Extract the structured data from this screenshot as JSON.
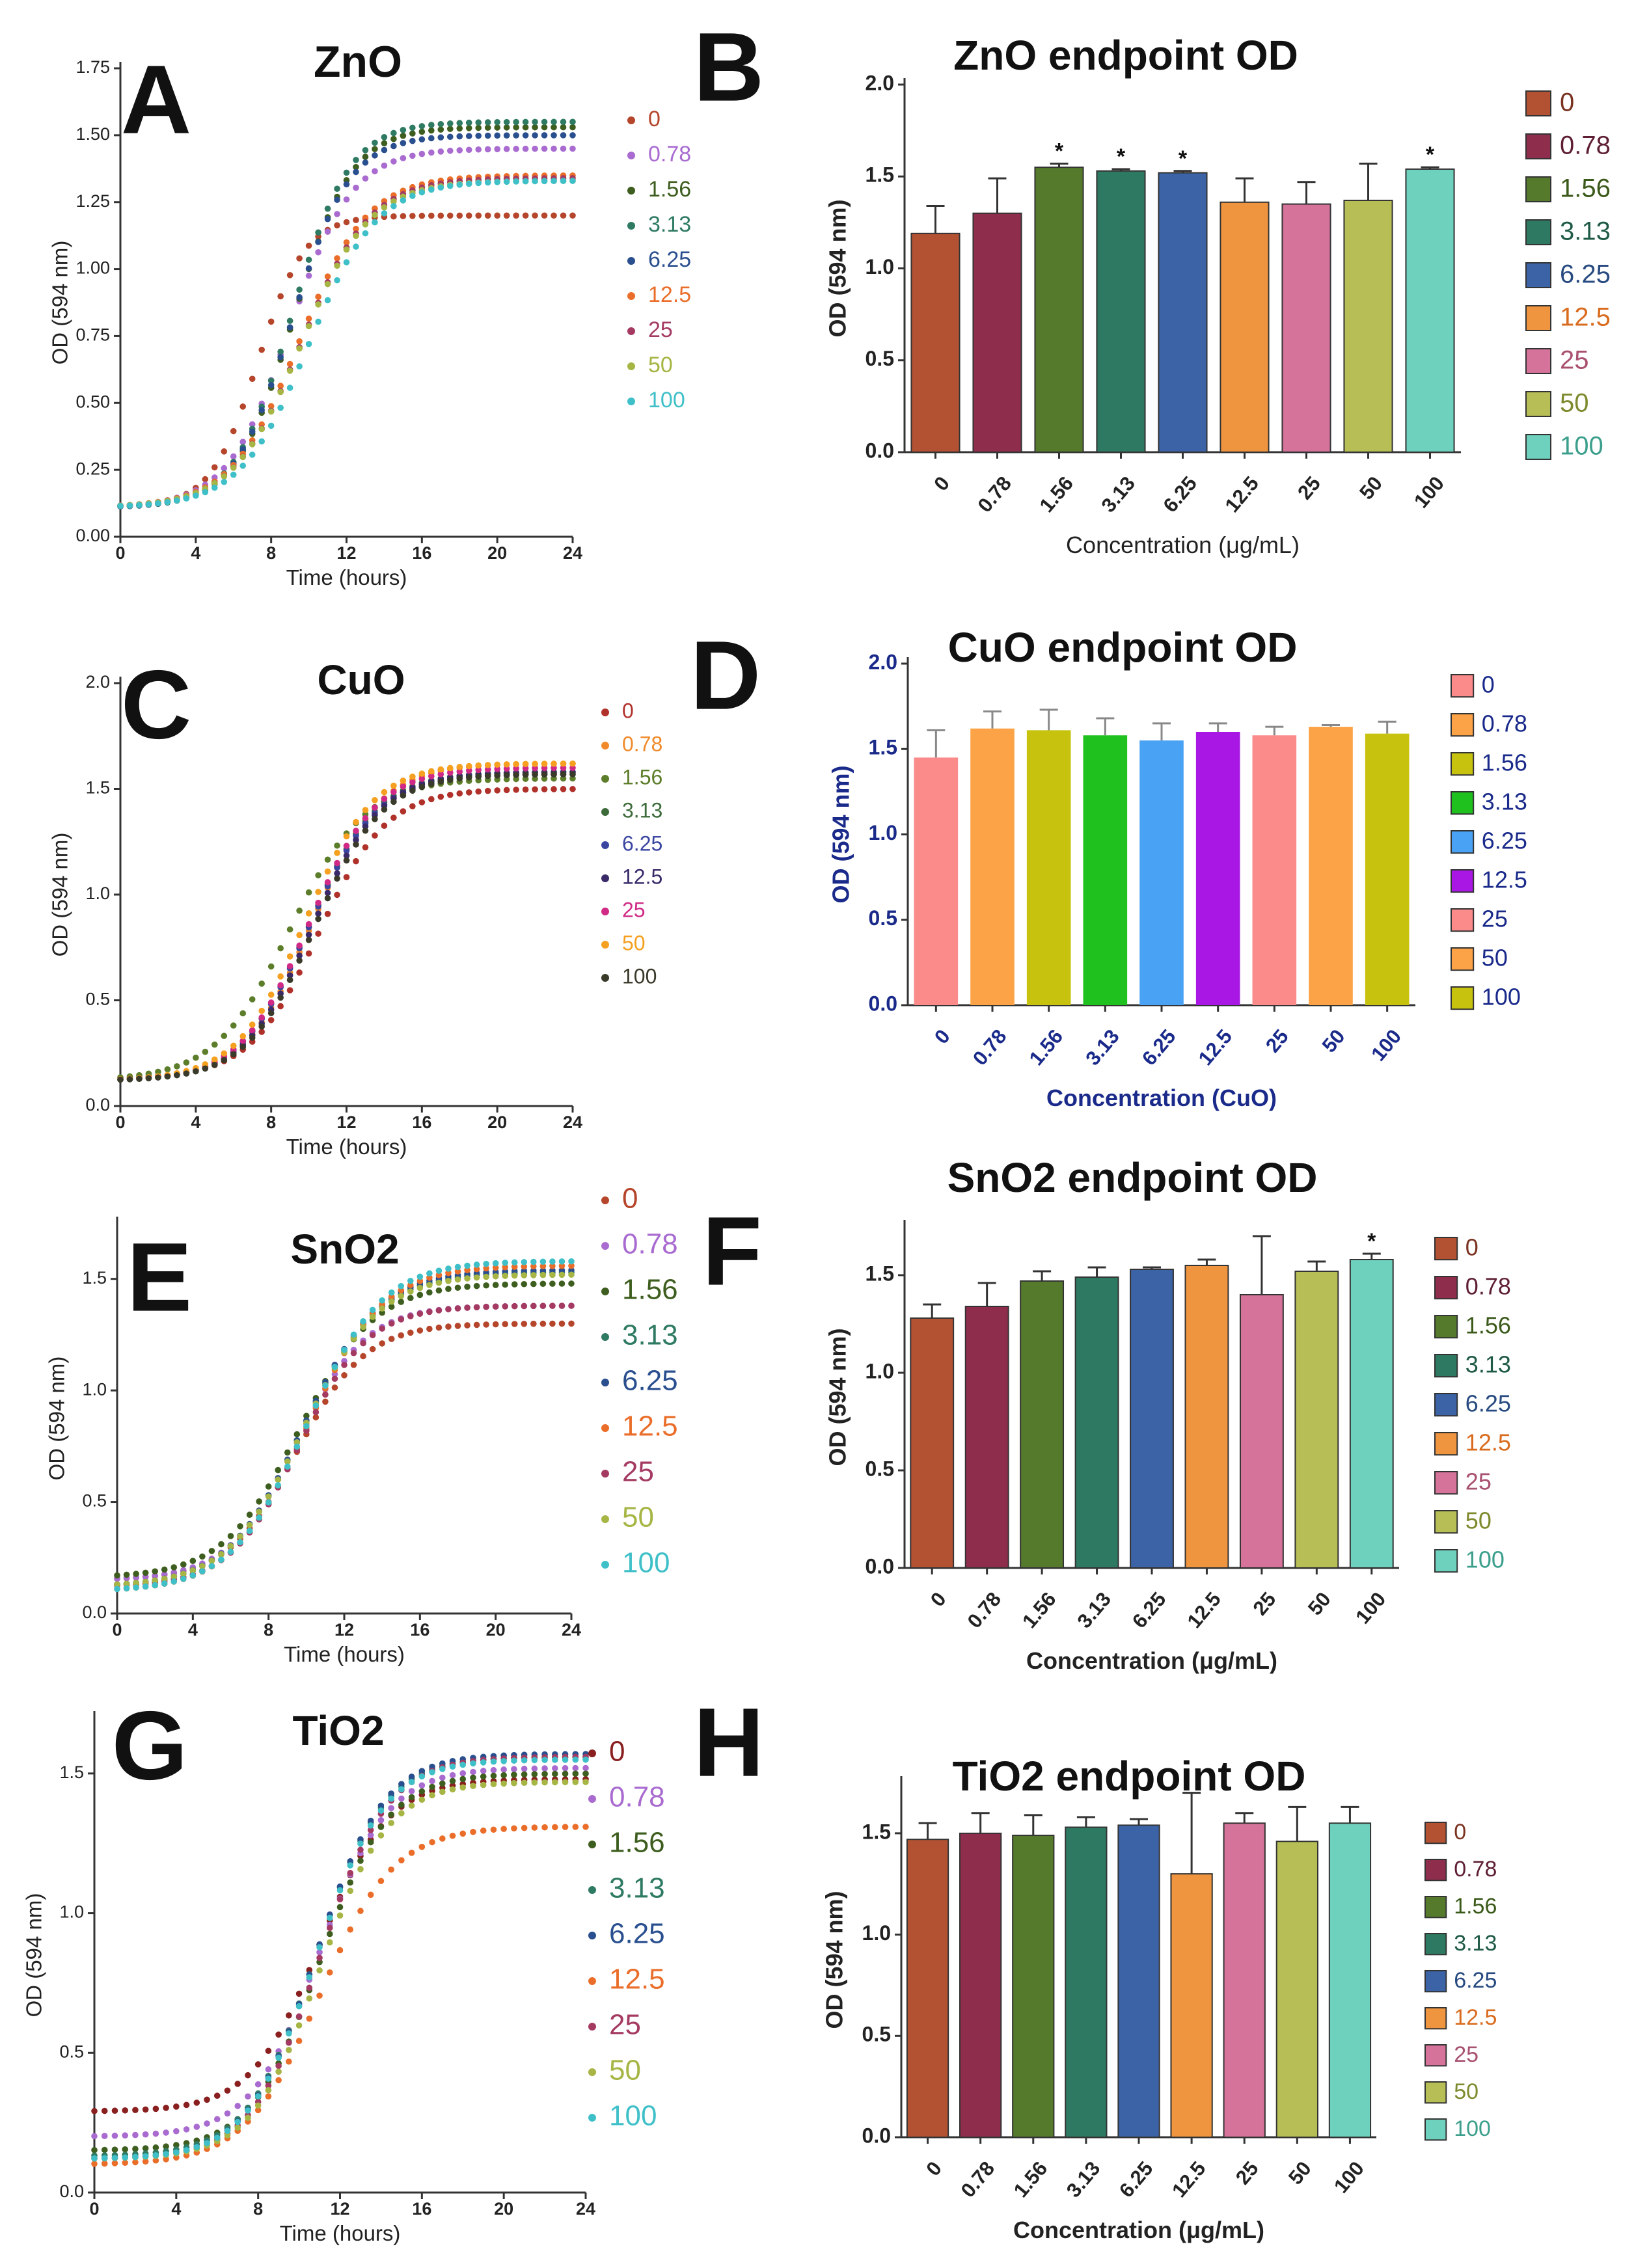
{
  "figure": {
    "concentrations": [
      "0",
      "0.78",
      "1.56",
      "3.13",
      "6.25",
      "12.5",
      "25",
      "50",
      "100"
    ],
    "panels": [
      {
        "letter": "A",
        "title": "ZnO"
      },
      {
        "letter": "B",
        "title": "ZnO endpoint OD"
      },
      {
        "letter": "C",
        "title": "CuO"
      },
      {
        "letter": "D",
        "title": "CuO endpoint OD"
      },
      {
        "letter": "E",
        "title": "SnO2"
      },
      {
        "letter": "F",
        "title": "SnO2 endpoint OD"
      },
      {
        "letter": "G",
        "title": "TiO2"
      },
      {
        "letter": "H",
        "title": "TiO2 endpoint OD"
      }
    ]
  },
  "chart_data": [
    {
      "panel": "A",
      "type": "scatter",
      "title": "ZnO",
      "xlabel": "Time (hours)",
      "ylabel": "OD (594 nm)",
      "xlim": [
        0,
        24
      ],
      "ylim": [
        0,
        1.75
      ],
      "xticks": [
        "0",
        "4",
        "8",
        "12",
        "16",
        "20",
        "24"
      ],
      "yticks": [
        "0.00",
        "0.25",
        "0.50",
        "0.75",
        "1.00",
        "1.25",
        "1.50",
        "1.75"
      ],
      "series": [
        {
          "name": "0",
          "color": "#b5452b",
          "start": 0.11,
          "final": 1.2,
          "mid": 7.3,
          "rate": 0.8
        },
        {
          "name": "0.78",
          "color": "#a96bd0",
          "start": 0.11,
          "final": 1.45,
          "mid": 9.0,
          "rate": 0.6
        },
        {
          "name": "1.56",
          "color": "#3e5e1f",
          "start": 0.11,
          "final": 1.53,
          "mid": 9.2,
          "rate": 0.65
        },
        {
          "name": "3.13",
          "color": "#2f7a63",
          "start": 0.11,
          "final": 1.55,
          "mid": 9.1,
          "rate": 0.65
        },
        {
          "name": "6.25",
          "color": "#2a4f8f",
          "start": 0.11,
          "final": 1.5,
          "mid": 9.1,
          "rate": 0.65
        },
        {
          "name": "12.5",
          "color": "#ea6e2a",
          "start": 0.11,
          "final": 1.35,
          "mid": 9.5,
          "rate": 0.55
        },
        {
          "name": "25",
          "color": "#a43a62",
          "start": 0.11,
          "final": 1.34,
          "mid": 9.6,
          "rate": 0.55
        },
        {
          "name": "50",
          "color": "#a6b544",
          "start": 0.11,
          "final": 1.33,
          "mid": 9.6,
          "rate": 0.55
        },
        {
          "name": "100",
          "color": "#3fc0c8",
          "start": 0.11,
          "final": 1.33,
          "mid": 10.0,
          "rate": 0.55
        }
      ]
    },
    {
      "panel": "B",
      "type": "bar",
      "title": "ZnO endpoint OD",
      "xlabel": "Concentration (μg/mL)",
      "ylabel": "OD (594 nm)",
      "ylim": [
        0,
        2.0
      ],
      "yticks": [
        "0.0",
        "0.5",
        "1.0",
        "1.5",
        "2.0"
      ],
      "categories": [
        "0",
        "0.78",
        "1.56",
        "3.13",
        "6.25",
        "12.5",
        "25",
        "50",
        "100"
      ],
      "values": [
        1.19,
        1.3,
        1.55,
        1.53,
        1.52,
        1.36,
        1.35,
        1.37,
        1.54
      ],
      "errors": [
        0.15,
        0.19,
        0.02,
        0.01,
        0.01,
        0.13,
        0.12,
        0.2,
        0.01
      ],
      "significance": [
        "",
        "",
        "*",
        "*",
        "*",
        "",
        "",
        "",
        "*"
      ],
      "colors": [
        "#b35232",
        "#8f2d4d",
        "#557a2c",
        "#2e7961",
        "#3b63a6",
        "#f0953f",
        "#d5739a",
        "#b6be55",
        "#6ed1bd"
      ],
      "legend": [
        "0",
        "0.78",
        "1.56",
        "3.13",
        "6.25",
        "12.5",
        "25",
        "50",
        "100"
      ],
      "legend_text_colors": [
        "#7a3320",
        "#5e1f34",
        "#3b5a1a",
        "#1f5a47",
        "#274a80",
        "#d96b1e",
        "#a8506f",
        "#7f8a2e",
        "#3c9f8c"
      ]
    },
    {
      "panel": "C",
      "type": "scatter",
      "title": "CuO",
      "xlabel": "Time (hours)",
      "ylabel": "OD (594 nm)",
      "xlim": [
        0,
        24
      ],
      "ylim": [
        0,
        2.0
      ],
      "xticks": [
        "0",
        "4",
        "8",
        "12",
        "16",
        "20",
        "24"
      ],
      "yticks": [
        "0.0",
        "0.5",
        "1.0",
        "1.5",
        "2.0"
      ],
      "series": [
        {
          "name": "0",
          "color": "#b0302a",
          "start": 0.13,
          "final": 1.5,
          "mid": 10.5,
          "rate": 0.55
        },
        {
          "name": "0.78",
          "color": "#f08a2a",
          "start": 0.12,
          "final": 1.62,
          "mid": 10.2,
          "rate": 0.55
        },
        {
          "name": "1.56",
          "color": "#5c7d2a",
          "start": 0.12,
          "final": 1.55,
          "mid": 9.0,
          "rate": 0.5
        },
        {
          "name": "3.13",
          "color": "#3d6b3a",
          "start": 0.12,
          "final": 1.58,
          "mid": 10.0,
          "rate": 0.55
        },
        {
          "name": "6.25",
          "color": "#3a46a0",
          "start": 0.12,
          "final": 1.57,
          "mid": 10.0,
          "rate": 0.55
        },
        {
          "name": "12.5",
          "color": "#3a2a6a",
          "start": 0.12,
          "final": 1.58,
          "mid": 10.2,
          "rate": 0.55
        },
        {
          "name": "25",
          "color": "#d02a86",
          "start": 0.12,
          "final": 1.6,
          "mid": 10.0,
          "rate": 0.55
        },
        {
          "name": "50",
          "color": "#f5a020",
          "start": 0.12,
          "final": 1.62,
          "mid": 9.8,
          "rate": 0.55
        },
        {
          "name": "100",
          "color": "#3a3a2a",
          "start": 0.12,
          "final": 1.57,
          "mid": 10.3,
          "rate": 0.55
        }
      ]
    },
    {
      "panel": "D",
      "type": "bar",
      "title": "CuO endpoint OD",
      "xlabel": "Concentration (CuO)",
      "ylabel": "OD (594 nm)",
      "ylim": [
        0,
        2.0
      ],
      "yticks": [
        "0.0",
        "0.5",
        "1.0",
        "1.5",
        "2.0"
      ],
      "categories": [
        "0",
        "0.78",
        "1.56",
        "3.13",
        "6.25",
        "12.5",
        "25",
        "50",
        "100"
      ],
      "values": [
        1.45,
        1.62,
        1.61,
        1.58,
        1.55,
        1.6,
        1.58,
        1.63,
        1.59
      ],
      "errors": [
        0.16,
        0.1,
        0.12,
        0.1,
        0.1,
        0.05,
        0.05,
        0.01,
        0.07
      ],
      "significance": [
        "",
        "",
        "",
        "",
        "",
        "",
        "",
        "",
        ""
      ],
      "colors": [
        "#fb8a8a",
        "#fca347",
        "#c6c20e",
        "#1ec11e",
        "#49a2f4",
        "#a817e3",
        "#fb8a8a",
        "#fca347",
        "#c6c20e"
      ],
      "legend": [
        "0",
        "0.78",
        "1.56",
        "3.13",
        "6.25",
        "12.5",
        "25",
        "50",
        "100"
      ],
      "legend_text_colors": [
        "#1a2a8a",
        "#1a2a8a",
        "#1a2a8a",
        "#1a2a8a",
        "#1a2a8a",
        "#1a2a8a",
        "#1a2a8a",
        "#1a2a8a",
        "#1a2a8a"
      ]
    },
    {
      "panel": "E",
      "type": "scatter",
      "title": "SnO2",
      "xlabel": "Time (hours)",
      "ylabel": "OD (594 nm)",
      "xlim": [
        0,
        24
      ],
      "ylim": [
        0,
        1.75
      ],
      "xticks": [
        "0",
        "4",
        "8",
        "12",
        "16",
        "20",
        "24"
      ],
      "yticks": [
        "0.0",
        "0.5",
        "1.0",
        "1.5"
      ],
      "series": [
        {
          "name": "0",
          "color": "#b5452b",
          "start": 0.15,
          "final": 1.3,
          "mid": 9.5,
          "rate": 0.55
        },
        {
          "name": "0.78",
          "color": "#a96bd0",
          "start": 0.15,
          "final": 1.38,
          "mid": 9.5,
          "rate": 0.55
        },
        {
          "name": "1.56",
          "color": "#3e5e1f",
          "start": 0.16,
          "final": 1.48,
          "mid": 9.6,
          "rate": 0.5
        },
        {
          "name": "3.13",
          "color": "#2f7a63",
          "start": 0.12,
          "final": 1.53,
          "mid": 9.8,
          "rate": 0.5
        },
        {
          "name": "6.25",
          "color": "#2a4f8f",
          "start": 0.12,
          "final": 1.54,
          "mid": 9.8,
          "rate": 0.5
        },
        {
          "name": "12.5",
          "color": "#ea6e2a",
          "start": 0.1,
          "final": 1.56,
          "mid": 10.0,
          "rate": 0.5
        },
        {
          "name": "25",
          "color": "#a43a62",
          "start": 0.12,
          "final": 1.38,
          "mid": 9.6,
          "rate": 0.55
        },
        {
          "name": "50",
          "color": "#a6b544",
          "start": 0.12,
          "final": 1.52,
          "mid": 9.8,
          "rate": 0.5
        },
        {
          "name": "100",
          "color": "#3fc0c8",
          "start": 0.1,
          "final": 1.58,
          "mid": 10.0,
          "rate": 0.5
        }
      ]
    },
    {
      "panel": "F",
      "type": "bar",
      "title": "SnO2 endpoint OD",
      "xlabel": "Concentration (μg/mL)",
      "ylabel": "OD (594 nm)",
      "ylim": [
        0,
        1.75
      ],
      "yticks": [
        "0.0",
        "0.5",
        "1.0",
        "1.5"
      ],
      "categories": [
        "0",
        "0.78",
        "1.56",
        "3.13",
        "6.25",
        "12.5",
        "25",
        "50",
        "100"
      ],
      "values": [
        1.28,
        1.34,
        1.47,
        1.49,
        1.53,
        1.55,
        1.4,
        1.52,
        1.58
      ],
      "errors": [
        0.07,
        0.12,
        0.05,
        0.05,
        0.01,
        0.03,
        0.3,
        0.05,
        0.03
      ],
      "significance": [
        "",
        "",
        "",
        "",
        "",
        "",
        "",
        "",
        "*"
      ],
      "colors": [
        "#b35232",
        "#8f2d4d",
        "#557a2c",
        "#2e7961",
        "#3b63a6",
        "#f0953f",
        "#d5739a",
        "#b6be55",
        "#6ed1bd"
      ],
      "legend": [
        "0",
        "0.78",
        "1.56",
        "3.13",
        "6.25",
        "12.5",
        "25",
        "50",
        "100"
      ],
      "legend_text_colors": [
        "#7a3320",
        "#5e1f34",
        "#3b5a1a",
        "#1f5a47",
        "#274a80",
        "#d96b1e",
        "#a8506f",
        "#7f8a2e",
        "#3c9f8c"
      ]
    },
    {
      "panel": "G",
      "type": "scatter",
      "title": "TiO2",
      "xlabel": "Time (hours)",
      "ylabel": "OD (594 nm)",
      "xlim": [
        0,
        24
      ],
      "ylim": [
        0,
        1.7
      ],
      "xticks": [
        "0",
        "4",
        "8",
        "12",
        "16",
        "20",
        "24"
      ],
      "yticks": [
        "0.0",
        "0.5",
        "1.0",
        "1.5"
      ],
      "series": [
        {
          "name": "0",
          "color": "#8a1f1f",
          "start": 0.29,
          "final": 1.48,
          "mid": 11.0,
          "rate": 0.6
        },
        {
          "name": "0.78",
          "color": "#a96bd0",
          "start": 0.2,
          "final": 1.52,
          "mid": 11.0,
          "rate": 0.6
        },
        {
          "name": "1.56",
          "color": "#3e5e1f",
          "start": 0.15,
          "final": 1.5,
          "mid": 11.0,
          "rate": 0.6
        },
        {
          "name": "3.13",
          "color": "#2f7a63",
          "start": 0.13,
          "final": 1.56,
          "mid": 10.8,
          "rate": 0.6
        },
        {
          "name": "6.25",
          "color": "#2a4f8f",
          "start": 0.12,
          "final": 1.57,
          "mid": 10.8,
          "rate": 0.6
        },
        {
          "name": "12.5",
          "color": "#ea6e2a",
          "start": 0.1,
          "final": 1.31,
          "mid": 11.0,
          "rate": 0.55
        },
        {
          "name": "25",
          "color": "#a43a62",
          "start": 0.12,
          "final": 1.56,
          "mid": 11.0,
          "rate": 0.6
        },
        {
          "name": "50",
          "color": "#a6b544",
          "start": 0.12,
          "final": 1.47,
          "mid": 11.0,
          "rate": 0.6
        },
        {
          "name": "100",
          "color": "#3fc0c8",
          "start": 0.12,
          "final": 1.55,
          "mid": 10.8,
          "rate": 0.6
        }
      ]
    },
    {
      "panel": "H",
      "type": "bar",
      "title": "TiO2 endpoint OD",
      "xlabel": "Concentration (μg/mL)",
      "ylabel": "OD (594 nm)",
      "ylim": [
        0,
        1.75
      ],
      "yticks": [
        "0.0",
        "0.5",
        "1.0",
        "1.5"
      ],
      "categories": [
        "0",
        "0.78",
        "1.56",
        "3.13",
        "6.25",
        "12.5",
        "25",
        "50",
        "100"
      ],
      "values": [
        1.47,
        1.5,
        1.49,
        1.53,
        1.54,
        1.3,
        1.55,
        1.46,
        1.55
      ],
      "errors": [
        0.08,
        0.1,
        0.1,
        0.05,
        0.03,
        0.4,
        0.05,
        0.17,
        0.08
      ],
      "significance": [
        "",
        "",
        "",
        "",
        "",
        "",
        "",
        "",
        ""
      ],
      "colors": [
        "#b35232",
        "#8f2d4d",
        "#557a2c",
        "#2e7961",
        "#3b63a6",
        "#f0953f",
        "#d5739a",
        "#b6be55",
        "#6ed1bd"
      ],
      "legend": [
        "0",
        "0.78",
        "1.56",
        "3.13",
        "6.25",
        "12.5",
        "25",
        "50",
        "100"
      ],
      "legend_text_colors": [
        "#7a3320",
        "#5e1f34",
        "#3b5a1a",
        "#1f5a47",
        "#274a80",
        "#d96b1e",
        "#a8506f",
        "#7f8a2e",
        "#3c9f8c"
      ]
    }
  ]
}
